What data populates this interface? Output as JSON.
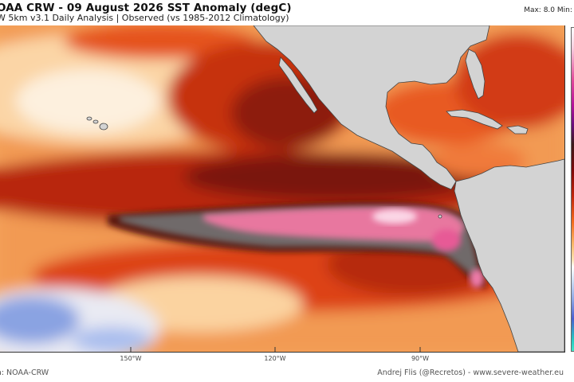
{
  "header": {
    "title": "OAA CRW - 09 August 2026 SST Anomaly (degC)",
    "subtitle": "W 5km v3.1 Daily Analysis  |  Observed (vs 1985-2012 Climatology)",
    "stats": "Max: 8.0  Min: -"
  },
  "axis": {
    "lon_labels": [
      "150°W",
      "120°W",
      "90°W"
    ]
  },
  "footer": {
    "source": "a: NOAA-CRW",
    "credit": "Andrej Flis (@Recretos) - www.severe-weather.eu"
  },
  "colors": {
    "land": "#d3d3d3",
    "coast": "#444444",
    "extreme_pink": "#e8609a",
    "very_warm": "#8b1a0a",
    "warm": "#e2421a",
    "mild": "#f6a35c",
    "neutral": "#fde7c9",
    "cool": "#7f9be0"
  }
}
